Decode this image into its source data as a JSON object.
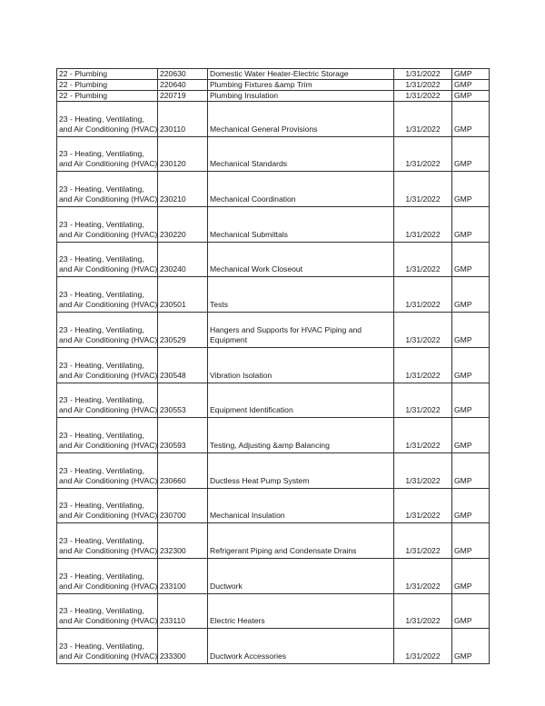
{
  "table": {
    "rows": [
      {
        "division": "22 - Plumbing",
        "section": "220630",
        "title": "Domestic Water Heater-Electric Storage",
        "date": "1/31/2022",
        "package": "GMP"
      },
      {
        "division": "22 - Plumbing",
        "section": "220640",
        "title": "Plumbing Fixtures &amp Trim",
        "date": "1/31/2022",
        "package": "GMP"
      },
      {
        "division": "22 - Plumbing",
        "section": "220719",
        "title": "Plumbing Insulation",
        "date": "1/31/2022",
        "package": "GMP"
      },
      {
        "division": "23 - Heating, Ventilating,\nand Air Conditioning (HVAC)",
        "section": "230110",
        "title": "Mechanical General Provisions",
        "date": "1/31/2022",
        "package": "GMP"
      },
      {
        "division": "23 - Heating, Ventilating,\nand Air Conditioning (HVAC)",
        "section": "230120",
        "title": "Mechanical Standards",
        "date": "1/31/2022",
        "package": "GMP"
      },
      {
        "division": "23 - Heating, Ventilating,\nand Air Conditioning (HVAC)",
        "section": "230210",
        "title": "Mechanical Coordination",
        "date": "1/31/2022",
        "package": "GMP"
      },
      {
        "division": "23 - Heating, Ventilating,\nand Air Conditioning (HVAC)",
        "section": "230220",
        "title": "Mechanical Submittals",
        "date": "1/31/2022",
        "package": "GMP"
      },
      {
        "division": "23 - Heating, Ventilating,\nand Air Conditioning (HVAC)",
        "section": "230240",
        "title": "Mechanical Work Closeout",
        "date": "1/31/2022",
        "package": "GMP"
      },
      {
        "division": "23 - Heating, Ventilating,\nand Air Conditioning (HVAC)",
        "section": "230501",
        "title": "Tests",
        "date": "1/31/2022",
        "package": "GMP"
      },
      {
        "division": "23 - Heating, Ventilating,\nand Air Conditioning (HVAC)",
        "section": "230529",
        "title": "Hangers and Supports for HVAC Piping and\nEquipment",
        "date": "1/31/2022",
        "package": "GMP"
      },
      {
        "division": "23 - Heating, Ventilating,\nand Air Conditioning (HVAC)",
        "section": "230548",
        "title": "Vibration Isolation",
        "date": "1/31/2022",
        "package": "GMP"
      },
      {
        "division": "23 - Heating, Ventilating,\nand Air Conditioning (HVAC)",
        "section": "230553",
        "title": "Equipment Identification",
        "date": "1/31/2022",
        "package": "GMP"
      },
      {
        "division": "23 - Heating, Ventilating,\nand Air Conditioning (HVAC)",
        "section": "230593",
        "title": "Testing, Adjusting &amp Balancing",
        "date": "1/31/2022",
        "package": "GMP"
      },
      {
        "division": "23 - Heating, Ventilating,\nand Air Conditioning (HVAC)",
        "section": "230660",
        "title": "Ductless Heat Pump System",
        "date": "1/31/2022",
        "package": "GMP"
      },
      {
        "division": "23 - Heating, Ventilating,\nand Air Conditioning (HVAC)",
        "section": "230700",
        "title": "Mechanical Insulation",
        "date": "1/31/2022",
        "package": "GMP"
      },
      {
        "division": "23 - Heating, Ventilating,\nand Air Conditioning (HVAC)",
        "section": "232300",
        "title": "Refrigerant Piping and Condensate Drains",
        "date": "1/31/2022",
        "package": "GMP"
      },
      {
        "division": "23 - Heating, Ventilating,\nand Air Conditioning (HVAC)",
        "section": "233100",
        "title": "Ductwork",
        "date": "1/31/2022",
        "package": "GMP"
      },
      {
        "division": "23 - Heating, Ventilating,\nand Air Conditioning (HVAC)",
        "section": "233110",
        "title": "Electric Heaters",
        "date": "1/31/2022",
        "package": "GMP"
      },
      {
        "division": "23 - Heating, Ventilating,\nand Air Conditioning (HVAC)",
        "section": "233300",
        "title": "Ductwork Accessories",
        "date": "1/31/2022",
        "package": "GMP"
      }
    ]
  }
}
